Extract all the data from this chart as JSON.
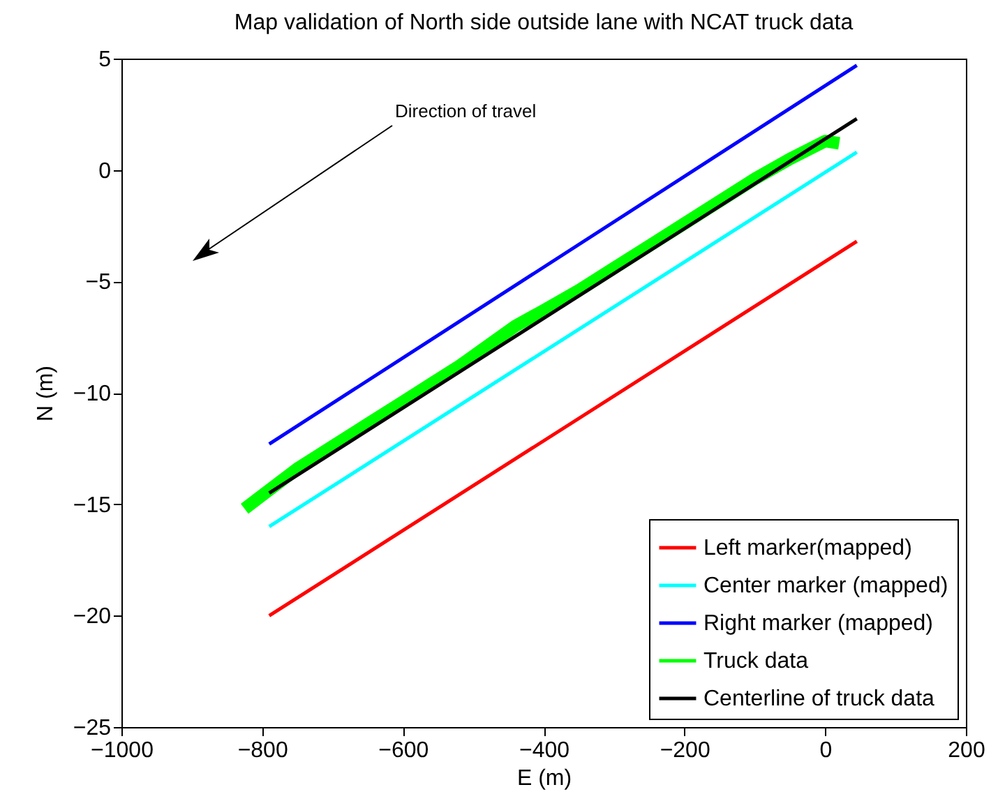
{
  "chart_data": {
    "type": "line",
    "title": "Map validation of North side outside lane with NCAT truck data",
    "xlabel": "E (m)",
    "ylabel": "N (m)",
    "xlim": [
      -1000,
      200
    ],
    "xticks": [
      -1000,
      -800,
      -600,
      -400,
      -200,
      0,
      200
    ],
    "ylim": [
      -25,
      5
    ],
    "yticks": [
      -25,
      -20,
      -15,
      -10,
      -5,
      0,
      5
    ],
    "grid": false,
    "legend": "bottom right",
    "line_style": "solid",
    "marker": "none",
    "annotations": [
      "Direction of travel"
    ],
    "series": [
      {
        "name": "Left marker(mapped)",
        "color": "#ff0000",
        "x": [
          -790,
          45
        ],
        "values": [
          -20,
          -3.2
        ]
      },
      {
        "name": "Center marker (mapped)",
        "color": "#00ffff",
        "x": [
          -790,
          45
        ],
        "values": [
          -16,
          0.8
        ]
      },
      {
        "name": "Right marker (mapped)",
        "color": "#0000ff",
        "x": [
          -790,
          45
        ],
        "values": [
          -12.3,
          4.7
        ]
      },
      {
        "name": "Truck data",
        "color": "#00ff00",
        "x": [
          -825,
          -800,
          -750,
          -700,
          -650,
          -600,
          -560,
          -520,
          -480,
          -440,
          -400,
          -350,
          -300,
          -250,
          -200,
          -150,
          -100,
          -50,
          0,
          20
        ],
        "values": [
          -15.2,
          -14.6,
          -13.4,
          -12.4,
          -11.4,
          -10.4,
          -9.6,
          -8.8,
          -7.9,
          -7.0,
          -6.3,
          -5.4,
          -4.4,
          -3.4,
          -2.4,
          -1.4,
          -0.4,
          0.5,
          1.3,
          1.2
        ]
      },
      {
        "name": "Centerline of truck data",
        "color": "#000000",
        "x": [
          -790,
          45
        ],
        "values": [
          -14.5,
          2.3
        ]
      }
    ]
  }
}
